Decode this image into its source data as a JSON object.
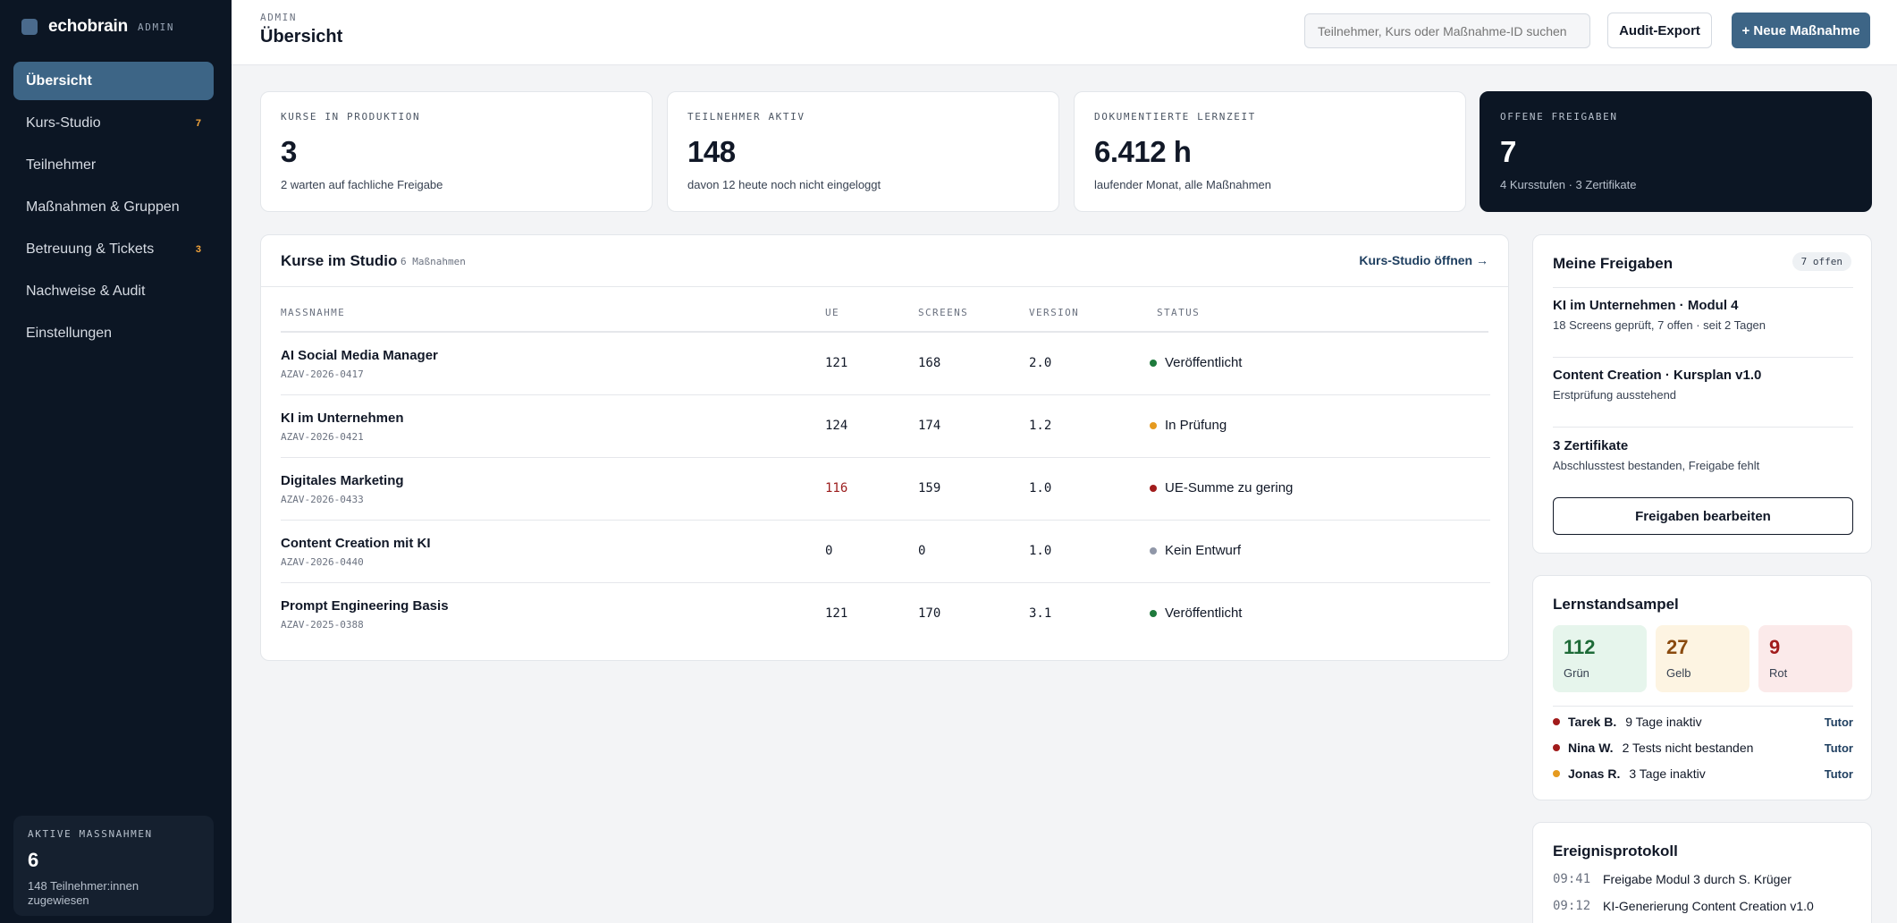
{
  "brand": {
    "name": "echobrain",
    "tag": "ADMIN"
  },
  "nav": [
    {
      "label": "Übersicht",
      "badge": ""
    },
    {
      "label": "Kurs-Studio",
      "badge": "7"
    },
    {
      "label": "Teilnehmer",
      "badge": ""
    },
    {
      "label": "Maßnahmen & Gruppen",
      "badge": ""
    },
    {
      "label": "Betreuung & Tickets",
      "badge": "3"
    },
    {
      "label": "Nachweise & Audit",
      "badge": ""
    },
    {
      "label": "Einstellungen",
      "badge": ""
    }
  ],
  "sidebar_card": {
    "label": "AKTIVE MASSNAHMEN",
    "value": "6",
    "sub": "148 Teilnehmer:innen zugewiesen"
  },
  "header": {
    "crumb": "ADMIN",
    "title": "Übersicht",
    "search_placeholder": "Teilnehmer, Kurs oder Maßnahme-ID suchen",
    "export_label": "Audit-Export",
    "new_label": "+ Neue Maßnahme"
  },
  "stats": [
    {
      "label": "KURSE IN PRODUKTION",
      "value": "3",
      "sub": "2 warten auf fachliche Freigabe"
    },
    {
      "label": "TEILNEHMER AKTIV",
      "value": "148",
      "sub": "davon 12 heute noch nicht eingeloggt"
    },
    {
      "label": "DOKUMENTIERTE LERNZEIT",
      "value": "6.412 h",
      "sub": "laufender Monat, alle Maßnahmen"
    },
    {
      "label": "OFFENE FREIGABEN",
      "value": "7",
      "sub": "4 Kursstufen · 3 Zertifikate"
    }
  ],
  "courses": {
    "title": "Kurse im Studio",
    "count": "6 Maßnahmen",
    "link": "Kurs-Studio öffnen →",
    "columns": [
      "MASSNAHME",
      "UE",
      "SCREENS",
      "VERSION",
      "STATUS"
    ],
    "rows": [
      {
        "name": "AI Social Media Manager",
        "code": "AZAV-2026-0417",
        "ue": "121",
        "screens": "168",
        "version": "2.0",
        "status": "Veröffentlicht",
        "status_color": "#1e7a3c"
      },
      {
        "name": "KI im Unternehmen",
        "code": "AZAV-2026-0421",
        "ue": "124",
        "screens": "174",
        "version": "1.2",
        "status": "In Prüfung",
        "status_color": "#e59a1f"
      },
      {
        "name": "Digitales Marketing",
        "code": "AZAV-2026-0433",
        "ue": "116",
        "screens": "159",
        "version": "1.0",
        "status": "UE-Summe zu gering",
        "status_color": "#a11b1b"
      },
      {
        "name": "Content Creation mit KI",
        "code": "AZAV-2026-0440",
        "ue": "0",
        "screens": "0",
        "version": "1.0",
        "status": "Kein Entwurf",
        "status_color": "#9097a8"
      },
      {
        "name": "Prompt Engineering Basis",
        "code": "AZAV-2025-0388",
        "ue": "121",
        "screens": "170",
        "version": "3.1",
        "status": "Veröffentlicht",
        "status_color": "#1e7a3c"
      }
    ]
  },
  "approvals": {
    "title": "Meine Freigaben",
    "pill": "7 offen",
    "items": [
      {
        "title": "KI im Unternehmen · Modul 4",
        "sub": "18 Screens geprüft, 7 offen · seit 2 Tagen"
      },
      {
        "title": "Content Creation · Kursplan v1.0",
        "sub": "Erstprüfung ausstehend"
      },
      {
        "title": "3 Zertifikate",
        "sub": "Abschlusstest bestanden, Freigabe fehlt"
      }
    ],
    "button": "Freigaben bearbeiten"
  },
  "learning": {
    "title": "Lernstandsampel",
    "amps": [
      {
        "value": "112",
        "label": "Grün",
        "bg": "#e6f5ec",
        "fg": "#1e6b38"
      },
      {
        "value": "27",
        "label": "Gelb",
        "bg": "#fdf4e2",
        "fg": "#8a4a0e"
      },
      {
        "value": "9",
        "label": "Rot",
        "bg": "#fbeaea",
        "fg": "#a11b1b"
      }
    ],
    "flags": [
      {
        "name": "Tarek B.",
        "text": "9 Tage inaktiv",
        "action": "Tutor",
        "color": "#a11b1b"
      },
      {
        "name": "Nina W.",
        "text": "2 Tests nicht bestanden",
        "action": "Tutor",
        "color": "#a11b1b"
      },
      {
        "name": "Jonas R.",
        "text": "3 Tage inaktiv",
        "action": "Tutor",
        "color": "#e59a1f"
      }
    ]
  },
  "events": {
    "title": "Ereignisprotokoll",
    "items": [
      {
        "time": "09:41",
        "text": "Freigabe Modul 3 durch S. Krüger"
      },
      {
        "time": "09:12",
        "text": "KI-Generierung Content Creation v1.0"
      }
    ]
  }
}
